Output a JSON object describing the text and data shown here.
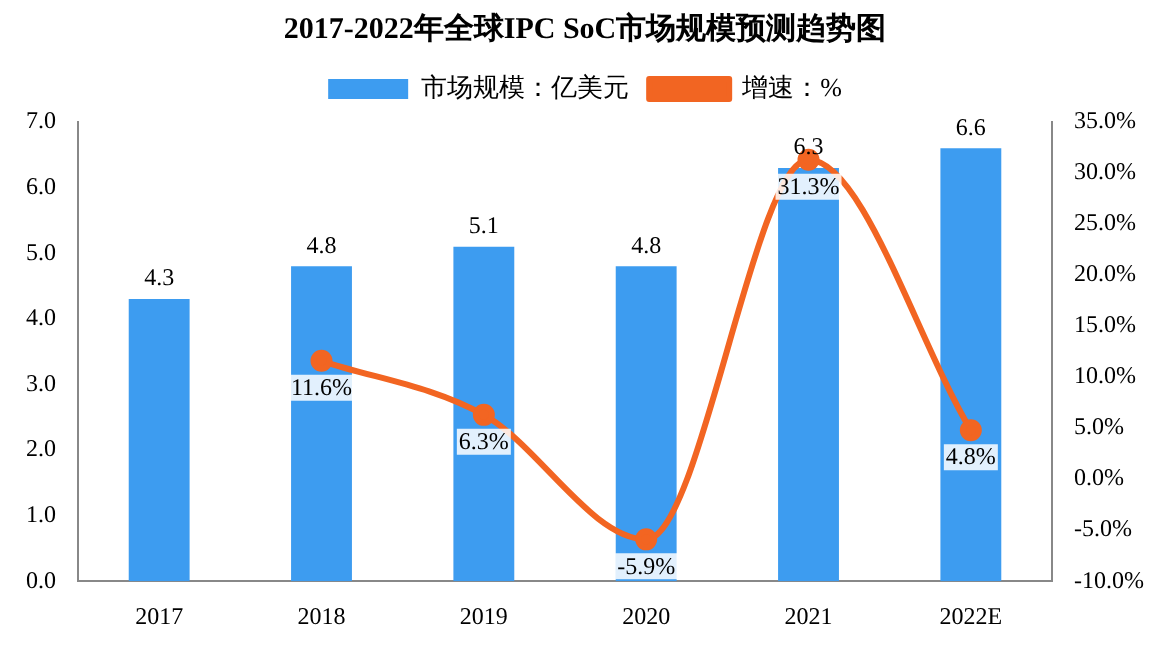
{
  "chart_data": {
    "type": "bar",
    "title": "2017-2022年全球IPC SoC市场规模预测趋势图",
    "categories": [
      "2017",
      "2018",
      "2019",
      "2020",
      "2021",
      "2022E"
    ],
    "series": [
      {
        "name": "市场规模：亿美元",
        "color": "#3d9cf0",
        "values": [
          4.3,
          4.8,
          5.1,
          4.8,
          6.3,
          6.6
        ],
        "value_labels": [
          "4.3",
          "4.8",
          "5.1",
          "4.8",
          "6.3",
          "6.6"
        ]
      },
      {
        "name": "增速：%",
        "type": "line",
        "axis": "y2",
        "color": "#f26522",
        "marker": "circle",
        "values": [
          null,
          11.6,
          6.3,
          -5.9,
          31.3,
          4.8
        ],
        "value_labels": [
          null,
          "11.6%",
          "6.3%",
          "-5.9%",
          "31.3%",
          "4.8%"
        ]
      }
    ],
    "ylim": [
      0,
      7
    ],
    "yticks": [
      {
        "value": 0,
        "label": "0.0"
      },
      {
        "value": 1,
        "label": "1.0"
      },
      {
        "value": 2,
        "label": "2.0"
      },
      {
        "value": 3,
        "label": "3.0"
      },
      {
        "value": 4,
        "label": "4.0"
      },
      {
        "value": 5,
        "label": "5.0"
      },
      {
        "value": 6,
        "label": "6.0"
      },
      {
        "value": 7,
        "label": "7.0"
      }
    ],
    "y2lim": [
      -10,
      35
    ],
    "y2ticks": [
      {
        "value": -10,
        "label": "-10.0%"
      },
      {
        "value": -5,
        "label": "-5.0%"
      },
      {
        "value": 0,
        "label": "0.0%"
      },
      {
        "value": 5,
        "label": "5.0%"
      },
      {
        "value": 10,
        "label": "10.0%"
      },
      {
        "value": 15,
        "label": "15.0%"
      },
      {
        "value": 20,
        "label": "20.0%"
      },
      {
        "value": 25,
        "label": "25.0%"
      },
      {
        "value": 30,
        "label": "30.0%"
      },
      {
        "value": 35,
        "label": "35.0%"
      }
    ],
    "grid": false,
    "legend": "top"
  }
}
